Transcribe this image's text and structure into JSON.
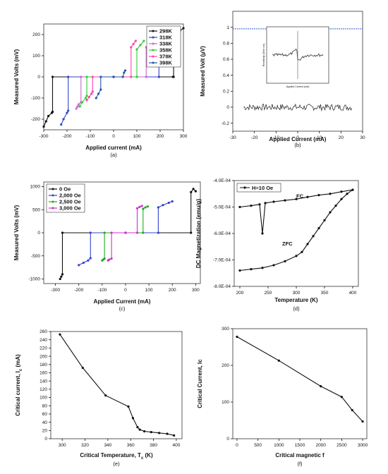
{
  "chart_data": [
    {
      "id": "a",
      "type": "line",
      "caption": "(a)",
      "xlabel": "Applied current (mA)",
      "ylabel": "Measured Volts (mV)",
      "xlim": [
        -300,
        300
      ],
      "ylim": [
        -250,
        250
      ],
      "xticks": [
        -300,
        -200,
        -100,
        0,
        100,
        200,
        300
      ],
      "yticks": [
        -200,
        -100,
        0,
        100,
        200
      ],
      "legend_position": "top-right",
      "series": [
        {
          "name": "298K",
          "color": "#111111",
          "x": [
            -300,
            -290,
            -280,
            -265,
            -262,
            -262,
            0,
            255,
            258,
            258,
            270,
            285,
            300
          ],
          "y": [
            -235,
            -210,
            -185,
            -170,
            -165,
            0,
            0,
            0,
            0,
            195,
            205,
            218,
            230
          ]
        },
        {
          "name": "318K",
          "color": "#3344cc",
          "x": [
            -225,
            -215,
            -200,
            -195,
            -195,
            0,
            195,
            195,
            200,
            210
          ],
          "y": [
            -225,
            -200,
            -170,
            -160,
            0,
            0,
            0,
            180,
            190,
            200
          ]
        },
        {
          "name": "338K",
          "color": "#cc66cc",
          "x": [
            -160,
            -155,
            -150,
            -140,
            -140,
            0,
            140,
            140,
            150,
            160
          ],
          "y": [
            -150,
            -140,
            -130,
            -120,
            0,
            0,
            0,
            140,
            150,
            160
          ]
        },
        {
          "name": "358K",
          "color": "#33cc33",
          "x": [
            -145,
            -135,
            -120,
            -115,
            -115,
            0,
            100,
            100,
            115,
            130
          ],
          "y": [
            -140,
            -120,
            -100,
            -90,
            0,
            0,
            0,
            130,
            150,
            170
          ]
        },
        {
          "name": "378K",
          "color": "#ff44aa",
          "x": [
            -115,
            -105,
            -95,
            -90,
            -90,
            0,
            75,
            75,
            85,
            95
          ],
          "y": [
            -110,
            -95,
            -80,
            -70,
            0,
            0,
            0,
            140,
            155,
            170
          ]
        },
        {
          "name": "398K",
          "color": "#2255aa",
          "x": [
            -75,
            -65,
            -55,
            -55,
            0,
            40,
            45,
            50
          ],
          "y": [
            -100,
            -80,
            -60,
            0,
            0,
            0,
            20,
            30
          ]
        }
      ]
    },
    {
      "id": "b",
      "type": "scatter",
      "caption": "(b)",
      "xlabel": "Applied Current (mA)",
      "ylabel": "Measured Volt (µV)",
      "xlim": [
        -30,
        30
      ],
      "ylim": [
        -0.3,
        1.2
      ],
      "xticks": [
        -30,
        -20,
        -10,
        0,
        10,
        20,
        30
      ],
      "yticks": [
        -0.2,
        0.0,
        0.2,
        0.4,
        0.6,
        0.8,
        1.0
      ],
      "reference_line": {
        "y": 0.98,
        "color": "#3355cc"
      },
      "noise": {
        "x_range": [
          -25,
          25
        ],
        "mean": 0.0,
        "amplitude": 0.04
      },
      "inset": {
        "xlabel": "Applied Current (mA)",
        "ylabel": "Resistivity (Ohm·cm)"
      }
    },
    {
      "id": "c",
      "type": "line",
      "caption": "(c)",
      "xlabel": "Applied Current (mA)",
      "ylabel": "Measured Volts (mV)",
      "xlim": [
        -350,
        320
      ],
      "ylim": [
        -1100,
        1100
      ],
      "xticks": [
        -300,
        -200,
        -100,
        0,
        100,
        200,
        300
      ],
      "yticks": [
        -1000,
        -500,
        0,
        500,
        1000
      ],
      "legend_position": "top-left",
      "series": [
        {
          "name": "0 Oe",
          "color": "#111111",
          "x": [
            -280,
            -275,
            -270,
            -270,
            0,
            280,
            280,
            290,
            300
          ],
          "y": [
            -1000,
            -950,
            -900,
            0,
            0,
            0,
            880,
            950,
            900
          ]
        },
        {
          "name": "2,000 Oe",
          "color": "#3344cc",
          "x": [
            -200,
            -180,
            -160,
            -150,
            -150,
            0,
            140,
            140,
            160,
            185,
            200
          ],
          "y": [
            -700,
            -650,
            -600,
            -550,
            0,
            0,
            0,
            550,
            600,
            650,
            680
          ]
        },
        {
          "name": "2,500 Oe",
          "color": "#22aa22",
          "x": [
            -100,
            -95,
            -90,
            -90,
            0,
            75,
            75,
            85,
            95
          ],
          "y": [
            -600,
            -580,
            -560,
            0,
            0,
            0,
            520,
            550,
            570
          ]
        },
        {
          "name": "3,000 Oe",
          "color": "#cc33cc",
          "x": [
            -75,
            -70,
            -60,
            -60,
            0,
            50,
            50,
            60,
            70
          ],
          "y": [
            -600,
            -580,
            -560,
            0,
            0,
            0,
            530,
            560,
            580
          ]
        }
      ]
    },
    {
      "id": "d",
      "type": "line",
      "caption": "(d)",
      "xlabel": "Temperature (K)",
      "ylabel": "DC Magnetization (emu/g)",
      "xlim": [
        190,
        410
      ],
      "ylim": [
        -0.0008,
        -0.0004
      ],
      "xticks": [
        200,
        250,
        300,
        350,
        400
      ],
      "yticks": [
        -0.0004,
        -0.0005,
        -0.0006,
        -0.0007,
        -0.0008
      ],
      "ytick_labels": [
        "-4.0E-04",
        "-5.0E-04",
        "-6.0E-04",
        "-7.0E-04",
        "-8.0E-04"
      ],
      "legend": "H=10 Oe",
      "annotations": [
        "FC",
        "ZFC"
      ],
      "series": [
        {
          "name": "FC",
          "color": "#111111",
          "x": [
            200,
            220,
            235,
            240,
            245,
            260,
            280,
            300,
            320,
            340,
            360,
            380,
            400
          ],
          "y": [
            -0.0005,
            -0.000495,
            -0.00049,
            -0.0006,
            -0.000485,
            -0.00048,
            -0.000475,
            -0.00047,
            -0.000462,
            -0.000455,
            -0.00045,
            -0.000442,
            -0.000435
          ]
        },
        {
          "name": "ZFC",
          "color": "#111111",
          "x": [
            200,
            220,
            240,
            260,
            280,
            300,
            310,
            320,
            330,
            340,
            350,
            360,
            370,
            380,
            390,
            400
          ],
          "y": [
            -0.00074,
            -0.000735,
            -0.00073,
            -0.00072,
            -0.000705,
            -0.000685,
            -0.00067,
            -0.00064,
            -0.00061,
            -0.00058,
            -0.00055,
            -0.00052,
            -0.000495,
            -0.00047,
            -0.00045,
            -0.000435
          ]
        }
      ]
    },
    {
      "id": "e",
      "type": "line",
      "caption": "(e)",
      "xlabel": "Critical Temperature, T",
      "xlabel_sub": "c",
      "xlabel_unit": " (K)",
      "ylabel": "Critical current, I",
      "ylabel_sub": "c",
      "ylabel_unit": " (mA)",
      "xlim": [
        290,
        405
      ],
      "ylim": [
        0,
        260
      ],
      "xticks": [
        300,
        320,
        340,
        360,
        380,
        400
      ],
      "yticks": [
        0,
        20,
        40,
        60,
        80,
        100,
        120,
        140,
        160,
        180,
        200,
        220,
        240,
        260
      ],
      "series": [
        {
          "name": "",
          "color": "#111111",
          "x": [
            298,
            318,
            338,
            358,
            362,
            366,
            368,
            372,
            378,
            385,
            392,
            398
          ],
          "y": [
            253,
            172,
            105,
            78,
            50,
            28,
            22,
            18,
            16,
            14,
            12,
            8
          ]
        }
      ]
    },
    {
      "id": "f",
      "type": "line",
      "caption": "(f)",
      "xlabel": "Critical magnetic f",
      "ylabel": "Critical Current, Ic",
      "xlim": [
        -100,
        3100
      ],
      "ylim": [
        0,
        300
      ],
      "xticks": [
        0,
        500,
        1000,
        1500,
        2000,
        2500,
        3000
      ],
      "xtick_labels": [
        "0",
        "500",
        "1000",
        "1500",
        "2000",
        "2500",
        "3000"
      ],
      "yticks": [
        0,
        100,
        200,
        300
      ],
      "series": [
        {
          "name": "",
          "color": "#111111",
          "x": [
            0,
            1000,
            2000,
            2500,
            2750,
            3000
          ],
          "y": [
            278,
            213,
            143,
            114,
            78,
            47
          ]
        }
      ]
    }
  ]
}
